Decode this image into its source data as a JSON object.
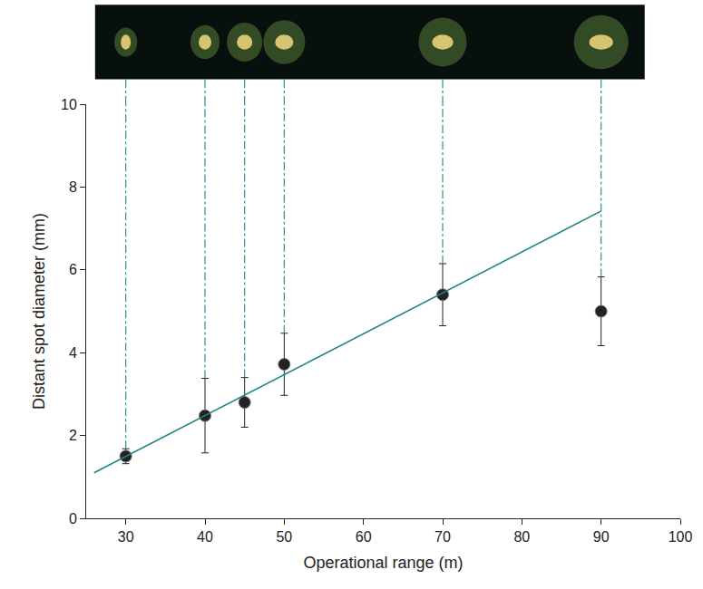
{
  "chart_data": {
    "type": "scatter",
    "x_label": "Operational range (m)",
    "y_label": "Distant spot diameter (mm)",
    "xlim": [
      25,
      100
    ],
    "xticks": [
      30,
      40,
      50,
      60,
      70,
      80,
      90,
      100
    ],
    "ylim": [
      0,
      10
    ],
    "yticks": [
      0,
      2,
      4,
      6,
      8,
      10
    ],
    "grid": false,
    "series": [
      {
        "type": "scatter",
        "marker": "circle",
        "color": "#222222",
        "x": [
          30,
          40,
          45,
          50,
          70,
          90
        ],
        "values": [
          1.5,
          2.48,
          2.8,
          3.72,
          5.4,
          5.0
        ],
        "error": [
          0.18,
          0.9,
          0.6,
          0.75,
          0.75,
          0.83
        ]
      },
      {
        "type": "line",
        "line_style": "solid",
        "color": "#1a8585",
        "x": [
          26,
          90
        ],
        "values": [
          1.1,
          7.42
        ]
      }
    ]
  }
}
